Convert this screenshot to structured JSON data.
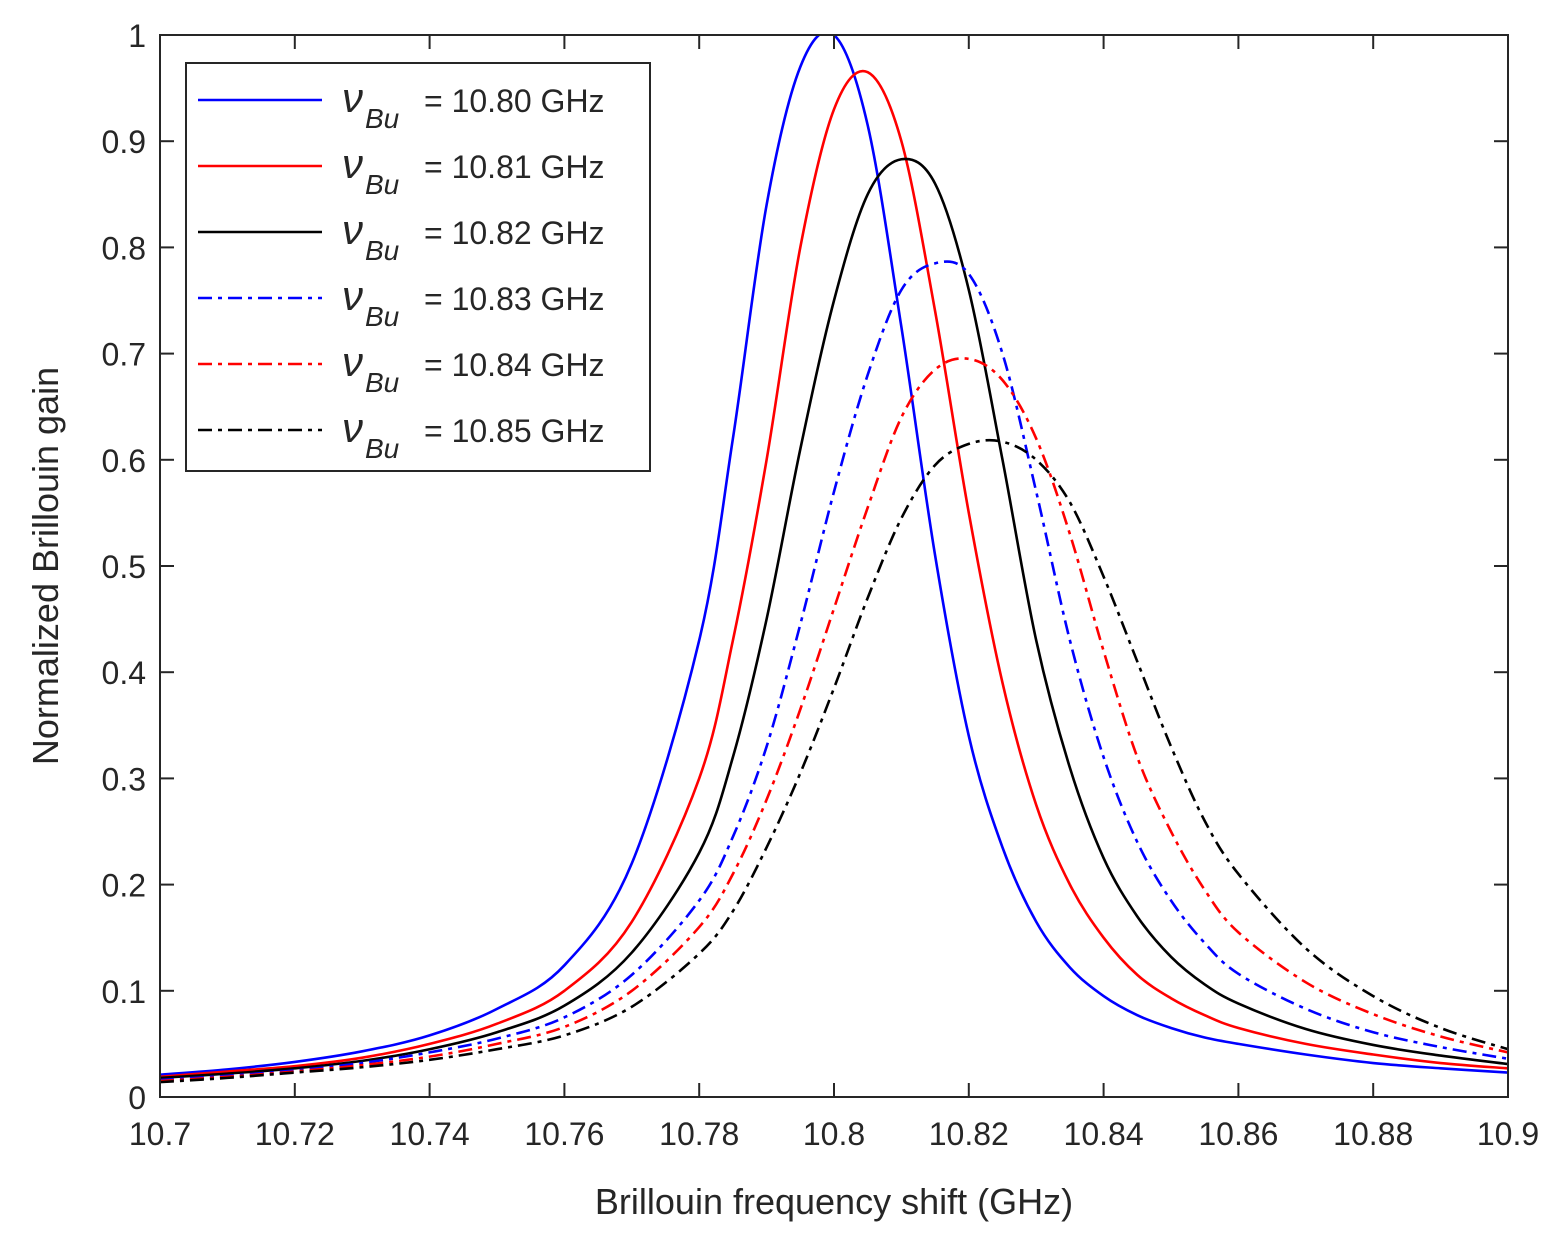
{
  "chart_data": {
    "type": "line",
    "title": "",
    "xlabel": "Brillouin frequency shift (GHz)",
    "ylabel": "Normalized Brillouin gain",
    "xlim": [
      10.7,
      10.9
    ],
    "ylim": [
      0,
      1
    ],
    "x_ticks": [
      10.7,
      10.72,
      10.74,
      10.76,
      10.78,
      10.8,
      10.82,
      10.84,
      10.86,
      10.88,
      10.9
    ],
    "x_tick_labels": [
      "10.7",
      "10.72",
      "10.74",
      "10.76",
      "10.78",
      "10.8",
      "10.82",
      "10.84",
      "10.86",
      "10.88",
      "10.9"
    ],
    "y_ticks": [
      0,
      0.1,
      0.2,
      0.3,
      0.4,
      0.5,
      0.6,
      0.7,
      0.8,
      0.9,
      1
    ],
    "y_tick_labels": [
      "0",
      "0.1",
      "0.2",
      "0.3",
      "0.4",
      "0.5",
      "0.6",
      "0.7",
      "0.8",
      "0.9",
      "1"
    ],
    "grid": false,
    "legend_position": "top-left",
    "legend_symbol": "ν",
    "legend_subscript": "Bu",
    "x": [
      10.7,
      10.71,
      10.72,
      10.73,
      10.74,
      10.75,
      10.76,
      10.77,
      10.78,
      10.785,
      10.79,
      10.795,
      10.8,
      10.805,
      10.81,
      10.815,
      10.82,
      10.825,
      10.83,
      10.835,
      10.84,
      10.845,
      10.85,
      10.855,
      10.86,
      10.87,
      10.88,
      10.89,
      10.9
    ],
    "series": [
      {
        "name": "= 10.80 GHz",
        "color": "#0000ff",
        "style": "solid",
        "values": [
          0.021,
          0.026,
          0.033,
          0.043,
          0.058,
          0.083,
          0.124,
          0.22,
          0.43,
          0.62,
          0.84,
          0.97,
          1.0,
          0.915,
          0.725,
          0.51,
          0.34,
          0.235,
          0.165,
          0.122,
          0.095,
          0.077,
          0.065,
          0.056,
          0.05,
          0.04,
          0.032,
          0.027,
          0.023
        ]
      },
      {
        "name": "= 10.81 GHz",
        "color": "#ff0000",
        "style": "solid",
        "values": [
          0.019,
          0.024,
          0.029,
          0.037,
          0.05,
          0.069,
          0.1,
          0.165,
          0.3,
          0.43,
          0.6,
          0.8,
          0.93,
          0.965,
          0.9,
          0.74,
          0.55,
          0.39,
          0.275,
          0.2,
          0.15,
          0.115,
          0.093,
          0.077,
          0.065,
          0.05,
          0.04,
          0.032,
          0.027
        ]
      },
      {
        "name": "= 10.82 GHz",
        "color": "#000000",
        "style": "solid",
        "values": [
          0.018,
          0.022,
          0.027,
          0.034,
          0.045,
          0.061,
          0.086,
          0.136,
          0.23,
          0.32,
          0.45,
          0.61,
          0.75,
          0.85,
          0.883,
          0.86,
          0.76,
          0.6,
          0.43,
          0.31,
          0.225,
          0.17,
          0.132,
          0.106,
          0.088,
          0.064,
          0.049,
          0.039,
          0.031
        ]
      },
      {
        "name": "= 10.83 GHz",
        "color": "#0000ff",
        "style": "dashdot",
        "values": [
          0.016,
          0.02,
          0.025,
          0.032,
          0.042,
          0.055,
          0.075,
          0.115,
          0.185,
          0.245,
          0.33,
          0.445,
          0.57,
          0.68,
          0.76,
          0.785,
          0.775,
          0.7,
          0.57,
          0.43,
          0.32,
          0.24,
          0.185,
          0.145,
          0.116,
          0.083,
          0.061,
          0.047,
          0.036
        ]
      },
      {
        "name": "= 10.84 GHz",
        "color": "#ff0000",
        "style": "dashdot",
        "values": [
          0.015,
          0.019,
          0.024,
          0.03,
          0.038,
          0.05,
          0.066,
          0.1,
          0.16,
          0.21,
          0.28,
          0.365,
          0.46,
          0.555,
          0.64,
          0.685,
          0.695,
          0.675,
          0.62,
          0.53,
          0.42,
          0.32,
          0.25,
          0.195,
          0.155,
          0.108,
          0.078,
          0.057,
          0.042
        ]
      },
      {
        "name": "= 10.85 GHz",
        "color": "#000000",
        "style": "dashdot",
        "values": [
          0.014,
          0.018,
          0.023,
          0.028,
          0.035,
          0.045,
          0.058,
          0.085,
          0.135,
          0.175,
          0.235,
          0.305,
          0.385,
          0.47,
          0.545,
          0.595,
          0.615,
          0.617,
          0.6,
          0.56,
          0.49,
          0.41,
          0.33,
          0.26,
          0.21,
          0.14,
          0.095,
          0.065,
          0.045
        ]
      }
    ]
  }
}
